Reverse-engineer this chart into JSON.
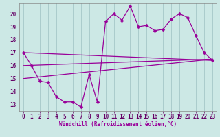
{
  "bg_color": "#cce8e5",
  "grid_color": "#aacccc",
  "line_color": "#990099",
  "xlim": [
    -0.5,
    23.5
  ],
  "ylim": [
    12.5,
    20.8
  ],
  "xlabel": "Windchill (Refroidissement éolien,°C)",
  "xticks": [
    0,
    1,
    2,
    3,
    4,
    5,
    6,
    7,
    8,
    9,
    10,
    11,
    12,
    13,
    14,
    15,
    16,
    17,
    18,
    19,
    20,
    21,
    22,
    23
  ],
  "yticks": [
    13,
    14,
    15,
    16,
    17,
    18,
    19,
    20
  ],
  "main_x": [
    0,
    1,
    2,
    3,
    4,
    5,
    6,
    7,
    8,
    9,
    10,
    11,
    12,
    13,
    14,
    15,
    16,
    17,
    18,
    19,
    20,
    21,
    22,
    23
  ],
  "main_y": [
    17.0,
    16.0,
    14.8,
    14.7,
    13.6,
    13.2,
    13.2,
    12.8,
    15.3,
    13.2,
    19.4,
    20.0,
    19.5,
    20.6,
    19.0,
    19.1,
    18.7,
    18.8,
    19.6,
    20.0,
    19.7,
    18.3,
    17.0,
    16.4
  ],
  "trend1_x": [
    0,
    23
  ],
  "trend1_y": [
    17.0,
    16.4
  ],
  "trend2_x": [
    0,
    23
  ],
  "trend2_y": [
    16.0,
    16.5
  ],
  "trend3_x": [
    0,
    23
  ],
  "trend3_y": [
    15.0,
    16.5
  ]
}
